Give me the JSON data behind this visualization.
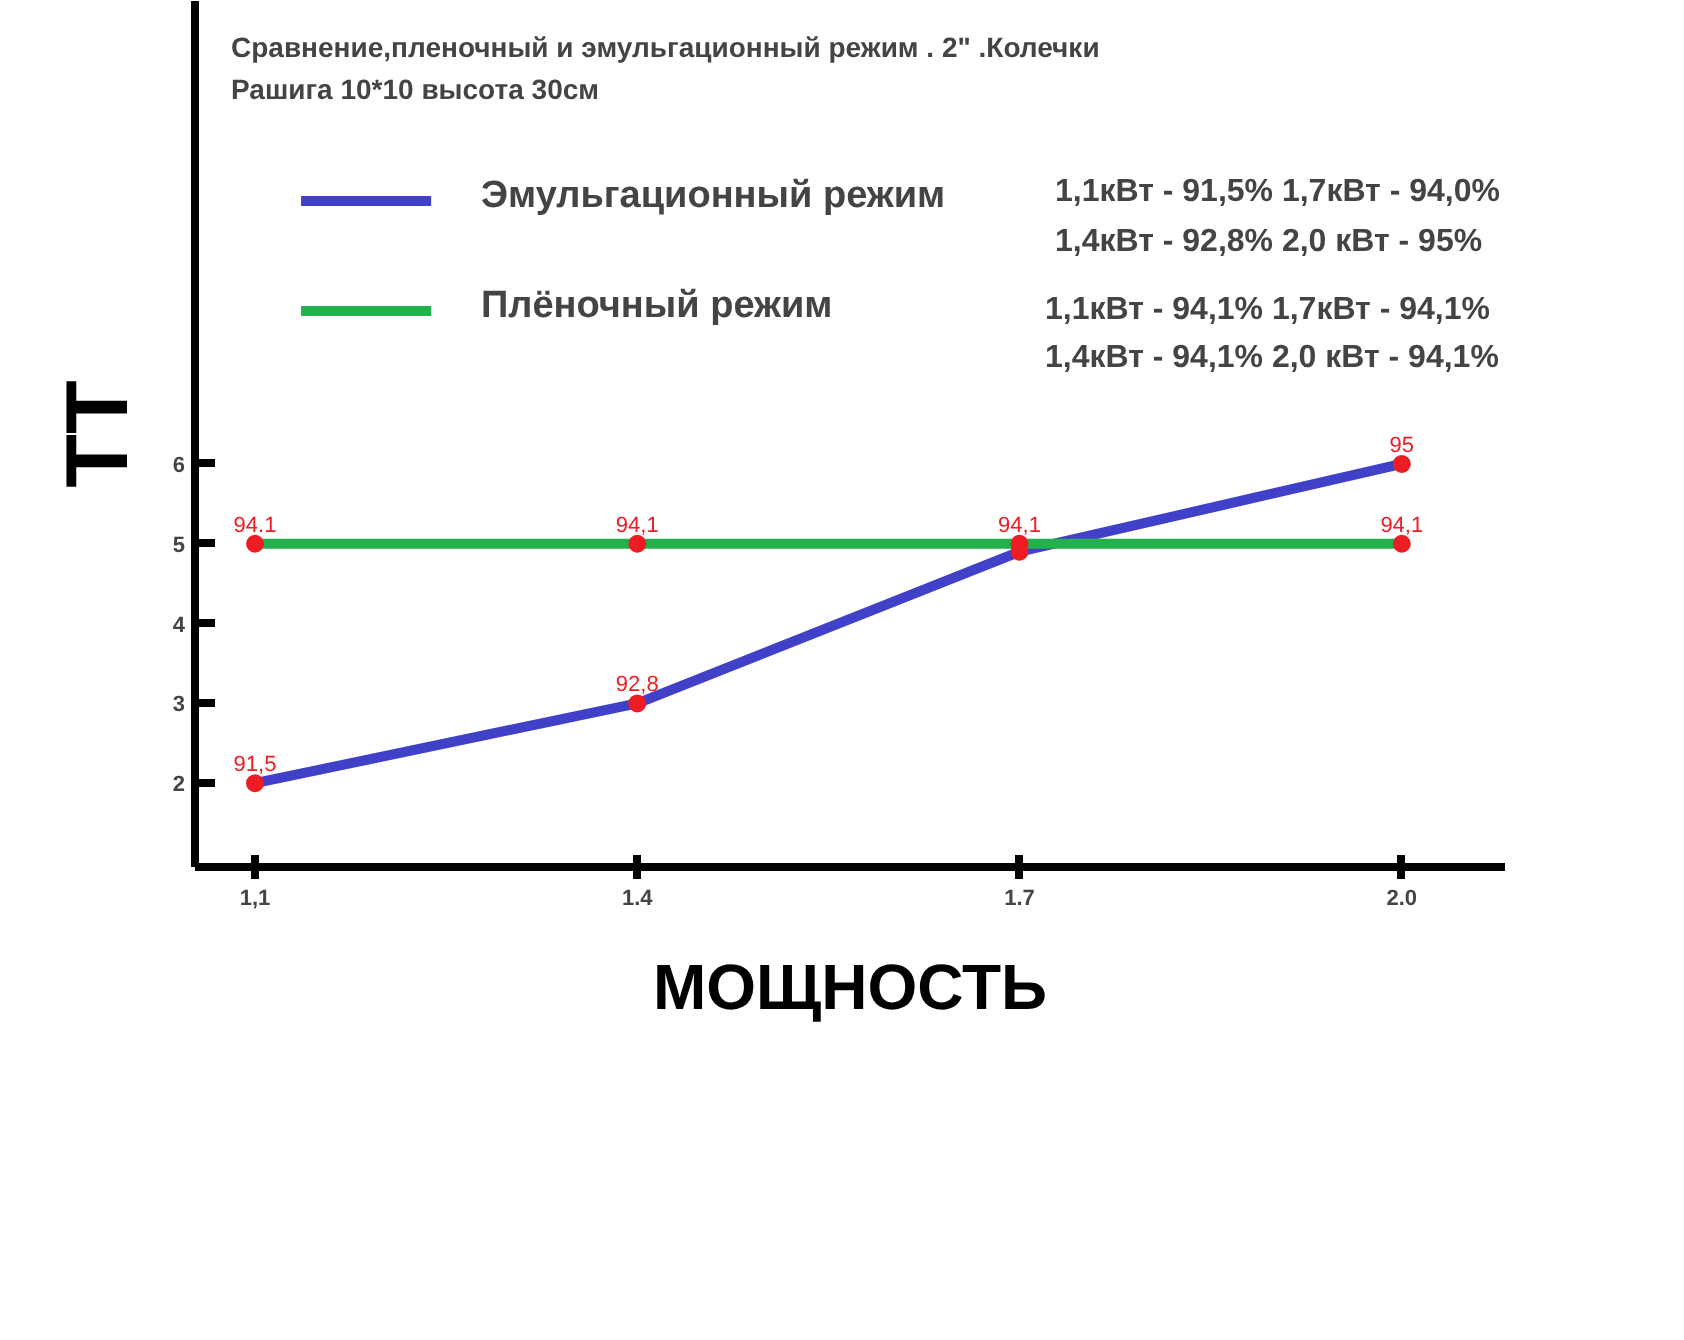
{
  "chart_data": {
    "type": "line",
    "title": "Сравнение,пленочный и эмульгационный режим . 2\" .Колечки",
    "subtitle": "Рашига 10*10  высота 30см",
    "xlabel": "МОЩНОСТЬ",
    "ylabel": "ТТ",
    "categories": [
      "1,1",
      "1.4",
      "1.7",
      "2.0"
    ],
    "ylim": [
      0.95,
      11.8
    ],
    "yticks": [
      2,
      3,
      4,
      5,
      6
    ],
    "legend": "top",
    "marker": "circle",
    "line_style": "solid",
    "series": [
      {
        "name": "Эмульгационный режим",
        "color": "#4040c8",
        "values": [
          2,
          3,
          4.9,
          6
        ]
      },
      {
        "name": "Плёночный режим",
        "color": "#22b14c",
        "values": [
          5,
          5,
          5,
          5
        ]
      }
    ],
    "annotations": [
      "1,1кВт - 91,5%  1,7кВт - 94,0%",
      "1,4кВт - 92,8%  2,0 кВт - 95%",
      "1,1кВт -  94,1% 1,7кВт - 94,1%",
      "1,4кВт -  94,1% 2,0 кВт - 94,1%",
      {
        "text": "91,5",
        "x": "1,1",
        "y": 2
      },
      {
        "text": "92,8",
        "x": "1.4",
        "y": 3
      },
      {
        "text": "95",
        "x": "2.0",
        "y": 6
      },
      {
        "text": "94.1",
        "x": "1,1",
        "y": 5
      },
      {
        "text": "94,1",
        "x": "1.4",
        "y": 5
      },
      {
        "text": "94,1",
        "x": "1.7",
        "y": 5
      },
      {
        "text": "94,1",
        "x": "2.0",
        "y": 5
      }
    ]
  }
}
